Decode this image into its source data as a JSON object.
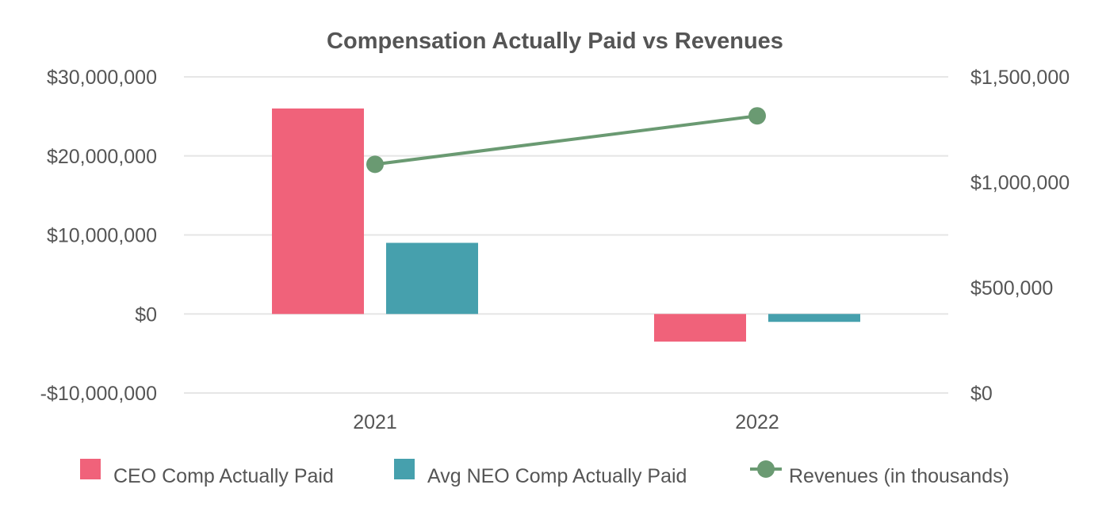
{
  "chart_data": {
    "type": "bar",
    "title": "Compensation Actually Paid vs Revenues",
    "categories": [
      "2021",
      "2022"
    ],
    "series": [
      {
        "name": "CEO Comp Actually Paid",
        "kind": "bar",
        "axis": "left",
        "color": "#f0627a",
        "values": [
          26000000,
          -3500000
        ]
      },
      {
        "name": "Avg NEO Comp Actually Paid",
        "kind": "bar",
        "axis": "left",
        "color": "#46a0ad",
        "values": [
          9000000,
          -1000000
        ]
      },
      {
        "name": "Revenues (in thousands)",
        "kind": "line",
        "axis": "right",
        "color": "#6a9a72",
        "values": [
          1085000,
          1315000
        ]
      }
    ],
    "y_left": {
      "min": -10000000,
      "max": 30000000,
      "ticks": [
        30000000,
        20000000,
        10000000,
        0,
        -10000000
      ],
      "tick_labels": [
        "$30,000,000",
        "$20,000,000",
        "$10,000,000",
        "$0",
        "-$10,000,000"
      ]
    },
    "y_right": {
      "min": 0,
      "max": 1500000,
      "ticks": [
        1500000,
        1000000,
        500000,
        0
      ],
      "tick_labels": [
        "$1,500,000",
        "$1,000,000",
        "$500,000",
        "$0"
      ]
    },
    "grid": true,
    "legend_position": "bottom"
  }
}
